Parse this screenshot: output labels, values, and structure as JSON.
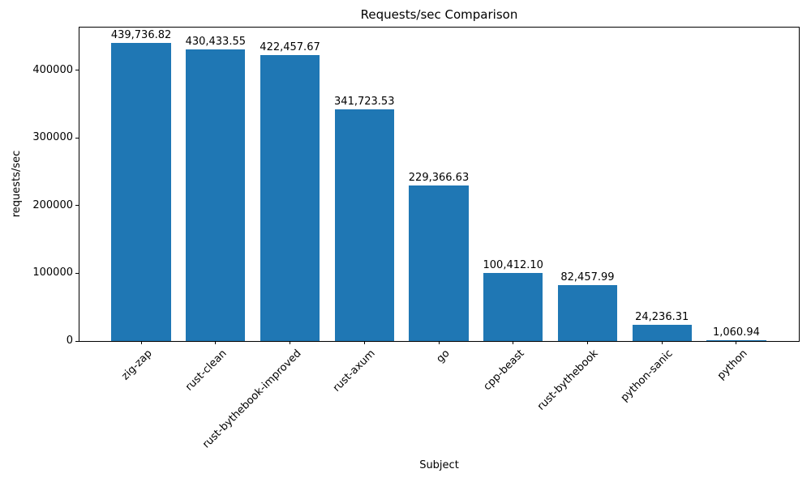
{
  "chart_data": {
    "type": "bar",
    "title": "Requests/sec Comparison",
    "xlabel": "Subject",
    "ylabel": "requests/sec",
    "categories": [
      "zig-zap",
      "rust-clean",
      "rust-bythebook-improved",
      "rust-axum",
      "go",
      "cpp-beast",
      "rust-bythebook",
      "python-sanic",
      "python"
    ],
    "values": [
      439736.82,
      430433.55,
      422457.67,
      341723.53,
      229366.63,
      100412.1,
      82457.99,
      24236.31,
      1060.94
    ],
    "value_labels": [
      "439,736.82",
      "430,433.55",
      "422,457.67",
      "341,723.53",
      "229,366.63",
      "100,412.10",
      "82,457.99",
      "24,236.31",
      "1,060.94"
    ],
    "yticks": [
      0,
      100000,
      200000,
      300000,
      400000
    ],
    "ylim": [
      0,
      464000
    ],
    "bar_color": "#1f77b4",
    "grid": false,
    "legend_position": "none"
  }
}
